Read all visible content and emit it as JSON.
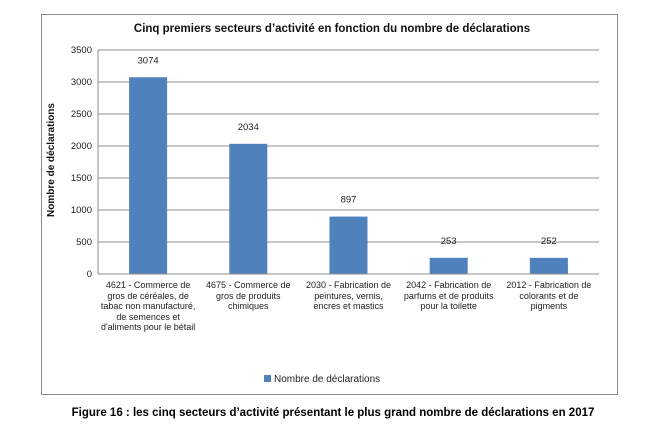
{
  "figure_caption": "Figure 16 : les cinq secteurs d’activité présentant le plus grand nombre de déclarations en 2017",
  "colors": {
    "bar": "#4f81bd",
    "grid": "#8c8c8c",
    "axis": "#8c8c8c"
  },
  "chart_data": {
    "type": "bar",
    "title": "Cinq premiers secteurs d’activité en fonction du nombre de déclarations",
    "xlabel": "",
    "ylabel": "Nombre de déclarations",
    "ylim": [
      0,
      3500
    ],
    "yticks": [
      "0",
      "500",
      "1000",
      "1500",
      "2000",
      "2500",
      "3000",
      "3500"
    ],
    "grid": true,
    "legend_position": "bottom",
    "categories": [
      "4621 - Commerce de gros de céréales, de tabac non manufacturé, de semences et d'aliments pour le bétail",
      "4675 - Commerce de gros de produits chimiques",
      "2030 - Fabrication de peintures, vernis, encres et mastics",
      "2042 - Fabrication de parfums et de produits pour la toilette",
      "2012 - Fabrication de colorants et de pigments"
    ],
    "series": [
      {
        "name": "Nombre de déclarations",
        "values": [
          3074,
          2034,
          897,
          253,
          252
        ]
      }
    ],
    "data_labels": [
      "3074",
      "2034",
      "897",
      "253",
      "252"
    ]
  }
}
